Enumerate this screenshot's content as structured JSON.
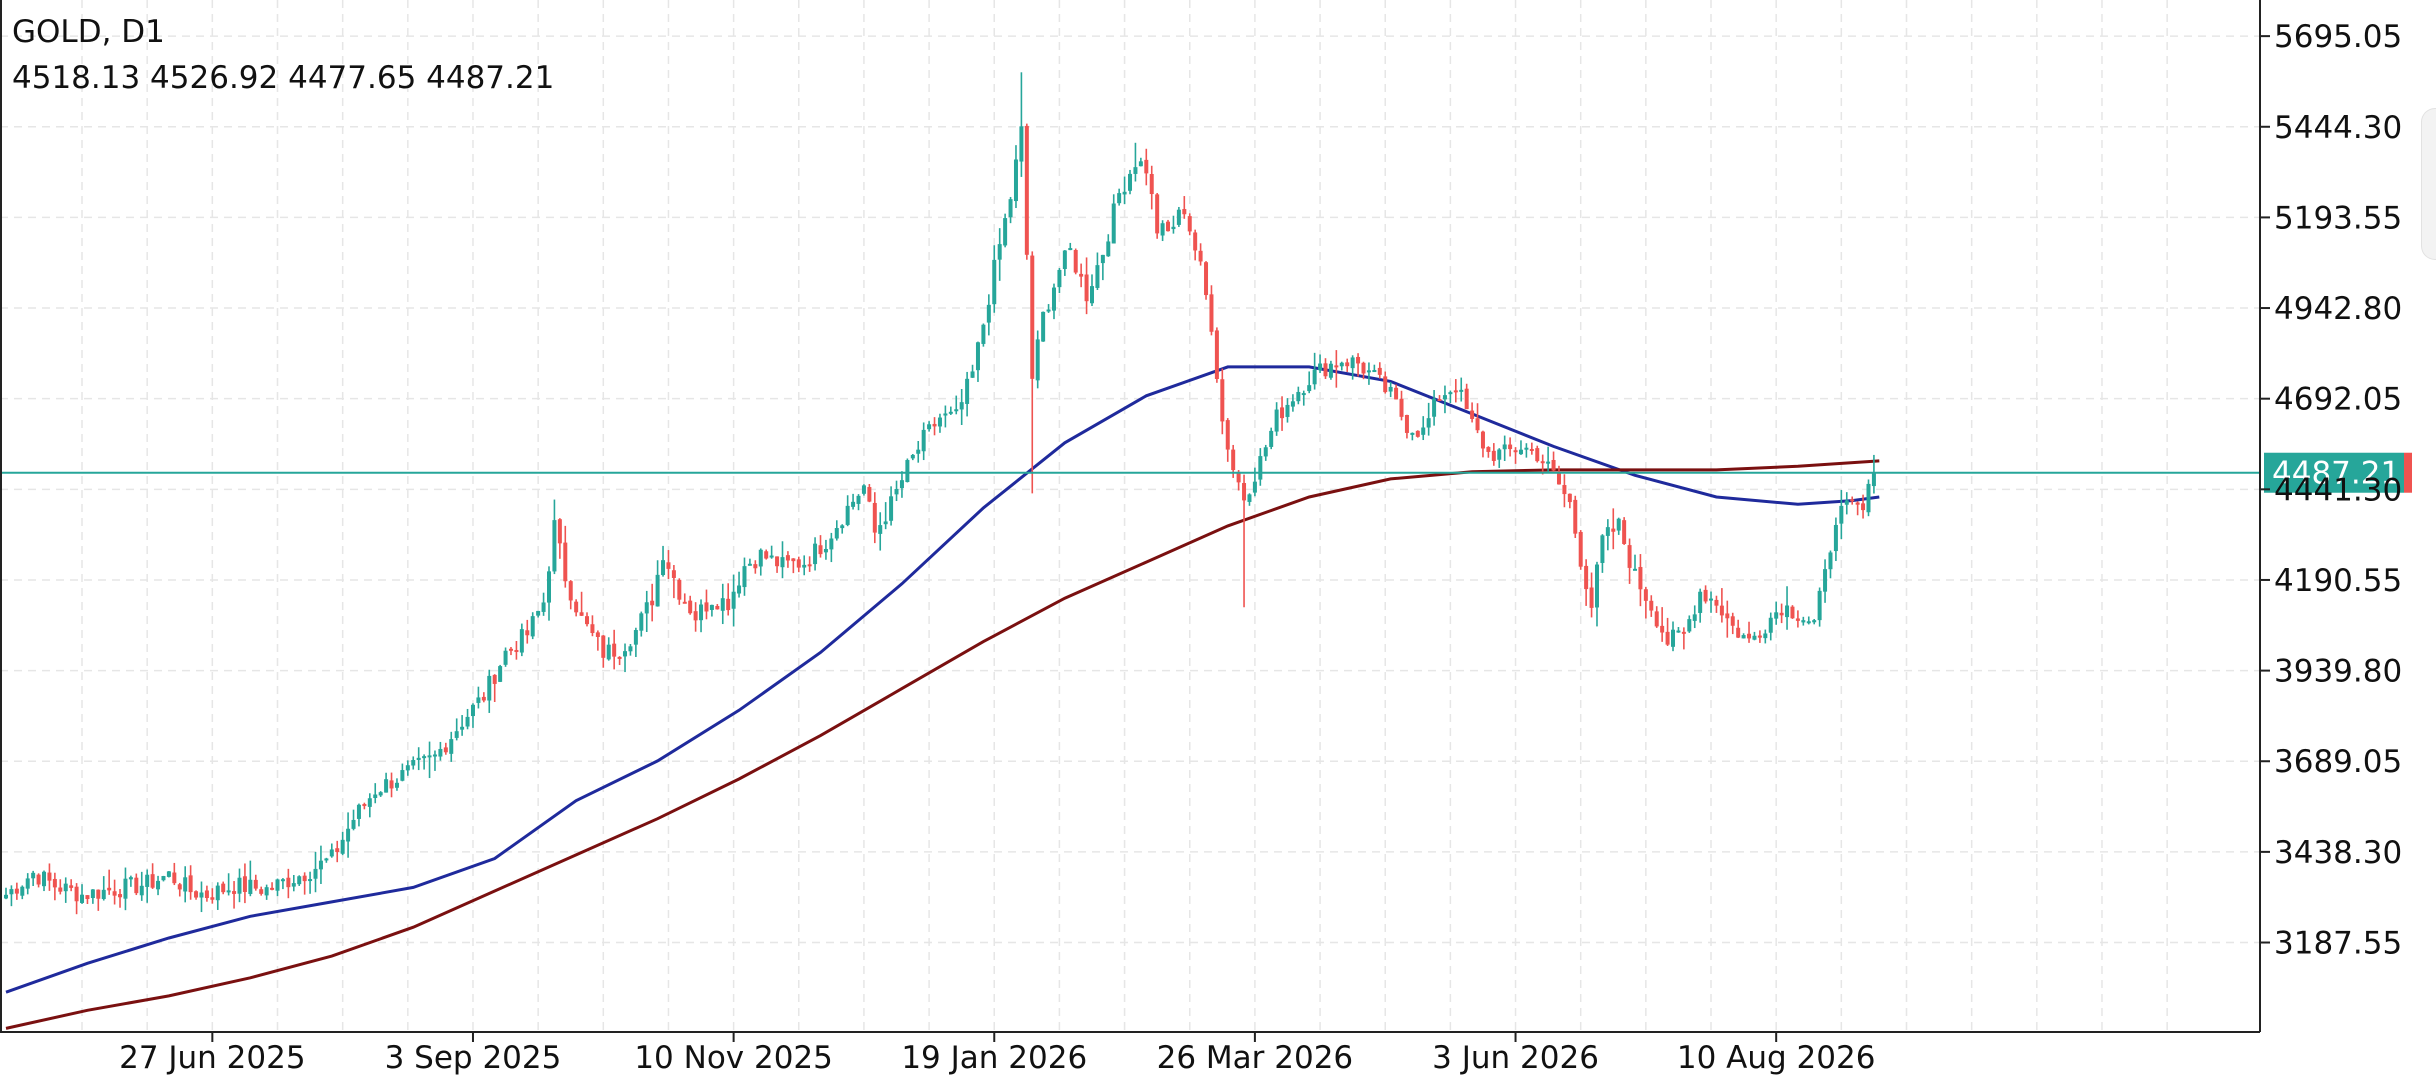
{
  "header": {
    "symbol_timeframe": "GOLD, D1",
    "ohlc": "4518.13 4526.92 4477.65 4487.21"
  },
  "colors": {
    "up": "#26a69a",
    "down": "#ef5350",
    "ma_blue": "#1f2a9c",
    "ma_red": "#7a1010",
    "price_line": "#26a69a",
    "grid": "#e6e6e6",
    "axis": "#222222"
  },
  "chart_data": {
    "type": "candlestick",
    "y_ticks": [
      "5695.05",
      "5444.30",
      "5193.55",
      "4942.80",
      "4692.05",
      "4441.30",
      "4190.55",
      "3939.80",
      "3689.05",
      "3438.30",
      "3187.55"
    ],
    "ylim": [
      2940,
      5795
    ],
    "x_ticks": [
      {
        "label": "27 Jun 2025",
        "index": 38
      },
      {
        "label": "3 Sep 2025",
        "index": 86
      },
      {
        "label": "10 Nov 2025",
        "index": 134
      },
      {
        "label": "19 Jan 2026",
        "index": 182
      },
      {
        "label": "26 Mar 2026",
        "index": 230
      },
      {
        "label": "3 Jun 2026",
        "index": 278
      },
      {
        "label": "10 Aug 2026",
        "index": 326
      }
    ],
    "bar_count": 345,
    "current_price": {
      "value": 4487.21,
      "label": "4487.21"
    },
    "anchors": [
      [
        0,
        3320
      ],
      [
        5,
        3380
      ],
      [
        9,
        3345
      ],
      [
        14,
        3320
      ],
      [
        20,
        3335
      ],
      [
        26,
        3350
      ],
      [
        30,
        3375
      ],
      [
        34,
        3330
      ],
      [
        37,
        3320
      ],
      [
        42,
        3345
      ],
      [
        48,
        3335
      ],
      [
        55,
        3380
      ],
      [
        60,
        3420
      ],
      [
        64,
        3530
      ],
      [
        68,
        3610
      ],
      [
        73,
        3650
      ],
      [
        79,
        3700
      ],
      [
        84,
        3800
      ],
      [
        88,
        3870
      ],
      [
        92,
        3990
      ],
      [
        96,
        4040
      ],
      [
        99,
        4130
      ],
      [
        101,
        4340
      ],
      [
        103,
        4200
      ],
      [
        106,
        4080
      ],
      [
        110,
        3990
      ],
      [
        113,
        4000
      ],
      [
        116,
        4050
      ],
      [
        119,
        4140
      ],
      [
        121,
        4270
      ],
      [
        124,
        4160
      ],
      [
        127,
        4090
      ],
      [
        130,
        4140
      ],
      [
        133,
        4130
      ],
      [
        136,
        4230
      ],
      [
        139,
        4260
      ],
      [
        143,
        4230
      ],
      [
        147,
        4240
      ],
      [
        151,
        4300
      ],
      [
        155,
        4390
      ],
      [
        158,
        4450
      ],
      [
        160,
        4320
      ],
      [
        163,
        4400
      ],
      [
        166,
        4500
      ],
      [
        169,
        4580
      ],
      [
        172,
        4640
      ],
      [
        175,
        4640
      ],
      [
        178,
        4760
      ],
      [
        180,
        4900
      ],
      [
        182,
        5050
      ],
      [
        185,
        5250
      ],
      [
        187,
        5430
      ],
      [
        189,
        4750
      ],
      [
        191,
        4920
      ],
      [
        194,
        5050
      ],
      [
        196,
        5100
      ],
      [
        199,
        4980
      ],
      [
        202,
        5100
      ],
      [
        205,
        5260
      ],
      [
        208,
        5350
      ],
      [
        210,
        5330
      ],
      [
        212,
        5160
      ],
      [
        214,
        5150
      ],
      [
        217,
        5220
      ],
      [
        220,
        5050
      ],
      [
        222,
        4900
      ],
      [
        224,
        4630
      ],
      [
        226,
        4500
      ],
      [
        228,
        4420
      ],
      [
        231,
        4520
      ],
      [
        234,
        4640
      ],
      [
        237,
        4700
      ],
      [
        240,
        4750
      ],
      [
        243,
        4780
      ],
      [
        246,
        4800
      ],
      [
        249,
        4790
      ],
      [
        252,
        4750
      ],
      [
        255,
        4700
      ],
      [
        258,
        4620
      ],
      [
        261,
        4600
      ],
      [
        264,
        4700
      ],
      [
        267,
        4730
      ],
      [
        270,
        4620
      ],
      [
        273,
        4540
      ],
      [
        276,
        4540
      ],
      [
        279,
        4560
      ],
      [
        282,
        4540
      ],
      [
        285,
        4480
      ],
      [
        288,
        4400
      ],
      [
        290,
        4250
      ],
      [
        292,
        4120
      ],
      [
        294,
        4300
      ],
      [
        297,
        4340
      ],
      [
        300,
        4200
      ],
      [
        303,
        4120
      ],
      [
        306,
        4020
      ],
      [
        309,
        4040
      ],
      [
        312,
        4160
      ],
      [
        315,
        4130
      ],
      [
        318,
        4060
      ],
      [
        321,
        4020
      ],
      [
        324,
        4070
      ],
      [
        327,
        4120
      ],
      [
        330,
        4100
      ],
      [
        333,
        4070
      ],
      [
        335,
        4200
      ],
      [
        337,
        4370
      ],
      [
        340,
        4390
      ],
      [
        342,
        4380
      ],
      [
        344,
        4487
      ]
    ],
    "series": [
      {
        "kind": "ma",
        "color_key": "ma_blue",
        "points": [
          [
            0,
            3050
          ],
          [
            15,
            3130
          ],
          [
            30,
            3200
          ],
          [
            45,
            3260
          ],
          [
            60,
            3300
          ],
          [
            75,
            3340
          ],
          [
            90,
            3420
          ],
          [
            105,
            3580
          ],
          [
            120,
            3690
          ],
          [
            135,
            3830
          ],
          [
            150,
            3990
          ],
          [
            165,
            4180
          ],
          [
            180,
            4390
          ],
          [
            195,
            4570
          ],
          [
            210,
            4700
          ],
          [
            225,
            4780
          ],
          [
            240,
            4780
          ],
          [
            255,
            4740
          ],
          [
            270,
            4650
          ],
          [
            285,
            4560
          ],
          [
            300,
            4480
          ],
          [
            315,
            4420
          ],
          [
            330,
            4400
          ],
          [
            340,
            4410
          ],
          [
            345,
            4420
          ]
        ]
      },
      {
        "kind": "ma",
        "color_key": "ma_red",
        "points": [
          [
            0,
            2950
          ],
          [
            15,
            3000
          ],
          [
            30,
            3040
          ],
          [
            45,
            3090
          ],
          [
            60,
            3150
          ],
          [
            75,
            3230
          ],
          [
            90,
            3330
          ],
          [
            105,
            3430
          ],
          [
            120,
            3530
          ],
          [
            135,
            3640
          ],
          [
            150,
            3760
          ],
          [
            165,
            3890
          ],
          [
            180,
            4020
          ],
          [
            195,
            4140
          ],
          [
            210,
            4240
          ],
          [
            225,
            4340
          ],
          [
            240,
            4420
          ],
          [
            255,
            4470
          ],
          [
            270,
            4490
          ],
          [
            285,
            4495
          ],
          [
            300,
            4495
          ],
          [
            315,
            4495
          ],
          [
            330,
            4505
          ],
          [
            345,
            4520
          ]
        ]
      }
    ]
  }
}
